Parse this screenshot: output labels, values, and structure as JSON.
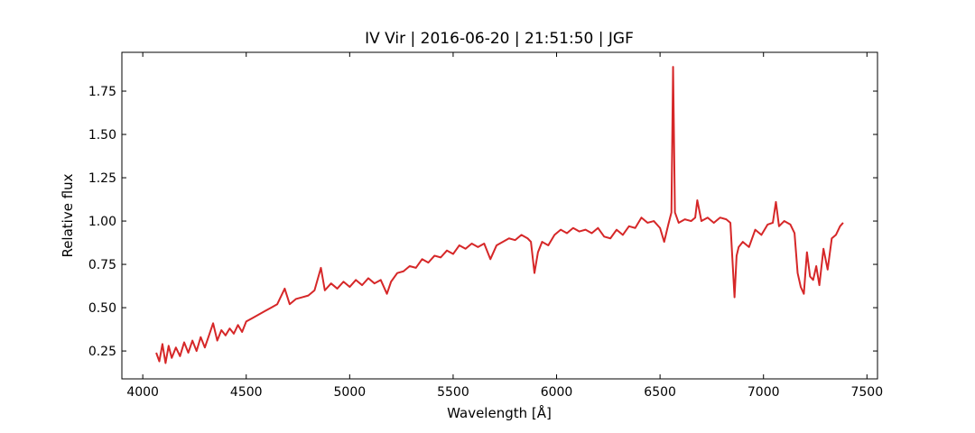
{
  "chart_data": {
    "type": "line",
    "title": "IV Vir | 2016-06-20 | 21:51:50 | JGF",
    "x_label": "Wavelength [Å]",
    "y_label": "Relative flux",
    "xlim": [
      3899,
      7551
    ],
    "ylim": [
      0.089,
      1.974
    ],
    "xticks": [
      4000,
      4500,
      5000,
      5500,
      6000,
      6500,
      7000,
      7500
    ],
    "yticks": [
      0.25,
      {
        "value": 0.5,
        "label": "0.50"
      },
      0.75,
      {
        "value": 1.0,
        "label": "1.00"
      },
      1.25,
      {
        "value": 1.5,
        "label": "1.50"
      },
      1.75
    ],
    "grid": false,
    "x": [
      4065,
      4080,
      4095,
      4110,
      4125,
      4140,
      4160,
      4180,
      4200,
      4220,
      4240,
      4260,
      4280,
      4300,
      4320,
      4340,
      4360,
      4380,
      4400,
      4420,
      4440,
      4460,
      4480,
      4500,
      4530,
      4560,
      4590,
      4620,
      4650,
      4686,
      4710,
      4740,
      4770,
      4800,
      4830,
      4861,
      4880,
      4910,
      4940,
      4970,
      5000,
      5030,
      5060,
      5090,
      5120,
      5150,
      5180,
      5200,
      5230,
      5260,
      5290,
      5320,
      5350,
      5380,
      5410,
      5440,
      5470,
      5500,
      5530,
      5560,
      5590,
      5620,
      5650,
      5680,
      5710,
      5740,
      5770,
      5800,
      5830,
      5860,
      5876,
      5893,
      5910,
      5930,
      5960,
      5990,
      6020,
      6050,
      6080,
      6110,
      6140,
      6170,
      6200,
      6230,
      6260,
      6290,
      6320,
      6350,
      6380,
      6410,
      6440,
      6470,
      6500,
      6520,
      6540,
      6555,
      6563,
      6572,
      6590,
      6620,
      6650,
      6670,
      6680,
      6700,
      6730,
      6760,
      6790,
      6820,
      6840,
      6860,
      6870,
      6880,
      6900,
      6930,
      6960,
      6990,
      7020,
      7045,
      7060,
      7075,
      7100,
      7130,
      7150,
      7165,
      7180,
      7195,
      7210,
      7225,
      7240,
      7255,
      7270,
      7290,
      7310,
      7330,
      7350,
      7370,
      7385
    ],
    "series": [
      {
        "name": "IV Vir",
        "color": "#d62728",
        "values": [
          0.24,
          0.19,
          0.29,
          0.18,
          0.28,
          0.21,
          0.27,
          0.22,
          0.3,
          0.24,
          0.31,
          0.25,
          0.33,
          0.27,
          0.34,
          0.41,
          0.31,
          0.37,
          0.34,
          0.38,
          0.35,
          0.4,
          0.36,
          0.42,
          0.44,
          0.46,
          0.48,
          0.5,
          0.52,
          0.61,
          0.52,
          0.55,
          0.56,
          0.57,
          0.6,
          0.73,
          0.6,
          0.64,
          0.61,
          0.65,
          0.62,
          0.66,
          0.63,
          0.67,
          0.64,
          0.66,
          0.58,
          0.65,
          0.7,
          0.71,
          0.74,
          0.73,
          0.78,
          0.76,
          0.8,
          0.79,
          0.83,
          0.81,
          0.86,
          0.84,
          0.87,
          0.85,
          0.87,
          0.78,
          0.86,
          0.88,
          0.9,
          0.89,
          0.92,
          0.9,
          0.88,
          0.7,
          0.82,
          0.88,
          0.86,
          0.92,
          0.95,
          0.93,
          0.96,
          0.94,
          0.95,
          0.93,
          0.96,
          0.91,
          0.9,
          0.95,
          0.92,
          0.97,
          0.96,
          1.02,
          0.99,
          1.0,
          0.96,
          0.88,
          0.98,
          1.05,
          1.89,
          1.05,
          0.99,
          1.01,
          1.0,
          1.02,
          1.12,
          1.0,
          1.02,
          0.99,
          1.02,
          1.01,
          0.99,
          0.56,
          0.8,
          0.85,
          0.88,
          0.85,
          0.95,
          0.92,
          0.98,
          0.99,
          1.11,
          0.97,
          1.0,
          0.98,
          0.93,
          0.7,
          0.62,
          0.58,
          0.82,
          0.68,
          0.66,
          0.74,
          0.63,
          0.84,
          0.72,
          0.9,
          0.92,
          0.97,
          0.99
        ]
      }
    ]
  }
}
